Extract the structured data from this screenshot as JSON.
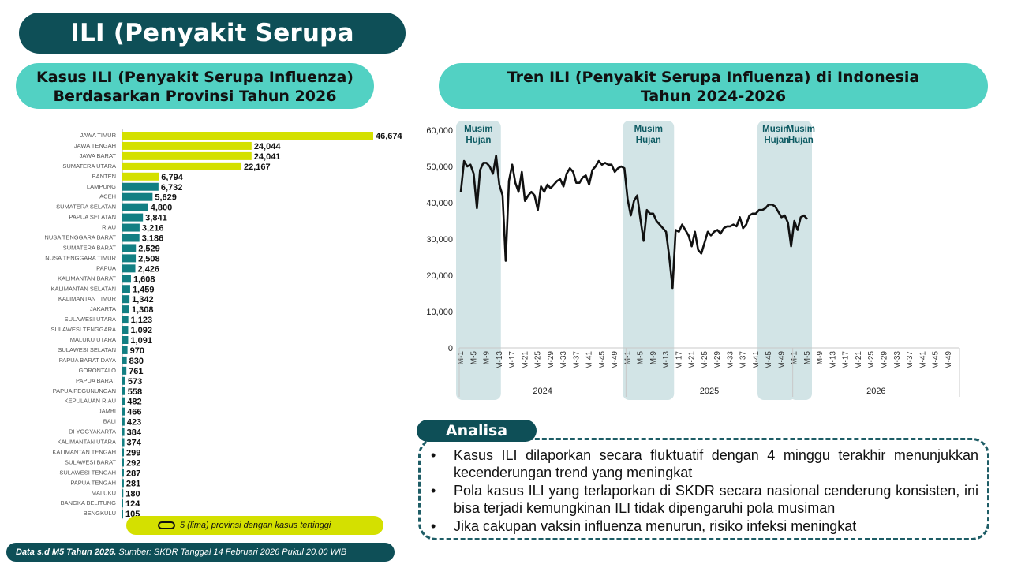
{
  "header": {
    "title": "ILI (Penyakit Serupa Influenza)"
  },
  "left_panel": {
    "title_line1": "Kasus ILI (Penyakit Serupa Influenza)",
    "title_line2": "Berdasarkan Provinsi Tahun 2026"
  },
  "right_panel": {
    "title_line1": "Tren ILI (Penyakit Serupa Influenza) di Indonesia",
    "title_line2": "Tahun 2024-2026"
  },
  "legend": {
    "text": "5 (lima) provinsi dengan kasus tertinggi"
  },
  "footer": {
    "bold": "Data s.d M5 Tahun 2026.",
    "rest": " Sumber: SKDR Tanggal 14 Februari 2026 Pukul 20.00 WIB"
  },
  "analysis": {
    "label": "Analisa",
    "bullet_symbol": "•",
    "bullets": [
      "Kasus ILI dilaporkan secara fluktuatif dengan 4 minggu terakhir menunjukkan kecenderungan trend yang meningkat",
      "Pola kasus ILI yang terlaporkan di SKDR secara nasional cenderung konsisten, ini bisa terjadi kemungkinan ILI tidak dipengaruhi pola musiman",
      "Jika cakupan vaksin influenza menurun, risiko infeksi meningkat"
    ]
  },
  "colors": {
    "top5": "#d4e000",
    "others": "#127f83",
    "dark": "#0e4f57",
    "accent": "#52d1c3",
    "season_band": "#d2e4e6",
    "line": "#111111"
  },
  "chart_data": [
    {
      "type": "bar",
      "orientation": "horizontal",
      "categories": [
        "JAWA TIMUR",
        "JAWA TENGAH",
        "JAWA BARAT",
        "SUMATERA UTARA",
        "BANTEN",
        "LAMPUNG",
        "ACEH",
        "SUMATERA SELATAN",
        "PAPUA SELATAN",
        "RIAU",
        "NUSA TENGGARA BARAT",
        "SUMATERA BARAT",
        "NUSA TENGGARA TIMUR",
        "PAPUA",
        "KALIMANTAN BARAT",
        "KALIMANTAN SELATAN",
        "KALIMANTAN TIMUR",
        "JAKARTA",
        "SULAWESI UTARA",
        "SULAWESI TENGGARA",
        "MALUKU UTARA",
        "SULAWESI SELATAN",
        "PAPUA BARAT DAYA",
        "GORONTALO",
        "PAPUA BARAT",
        "PAPUA PEGUNUNGAN",
        "KEPULAUAN RIAU",
        "JAMBI",
        "BALI",
        "DI YOGYAKARTA",
        "KALIMANTAN UTARA",
        "KALIMANTAN TENGAH",
        "SULAWESI BARAT",
        "SULAWESI TENGAH",
        "PAPUA TENGAH",
        "MALUKU",
        "BANGKA BELITUNG",
        "BENGKULU"
      ],
      "values": [
        46674,
        24044,
        24041,
        22167,
        6794,
        6732,
        5629,
        4800,
        3841,
        3216,
        3186,
        2529,
        2508,
        2426,
        1608,
        1459,
        1342,
        1308,
        1123,
        1092,
        1091,
        970,
        830,
        761,
        573,
        558,
        482,
        466,
        423,
        384,
        374,
        299,
        292,
        287,
        281,
        180,
        124,
        105
      ],
      "value_labels": [
        "46,674",
        "24,044",
        "24,041",
        "22,167",
        "6,794",
        "6,732",
        "5,629",
        "4,800",
        "3,841",
        "3,216",
        "3,186",
        "2,529",
        "2,508",
        "2,426",
        "1,608",
        "1,459",
        "1,342",
        "1,308",
        "1,123",
        "1,092",
        "1,091",
        "970",
        "830",
        "761",
        "573",
        "558",
        "482",
        "466",
        "423",
        "384",
        "374",
        "299",
        "292",
        "287",
        "281",
        "180",
        "124",
        "105"
      ],
      "highlight_top": 5
    },
    {
      "type": "line",
      "y_ticks": [
        0,
        10000,
        20000,
        30000,
        40000,
        50000,
        60000
      ],
      "y_tick_labels": [
        "0",
        "10,000",
        "20,000",
        "30,000",
        "40,000",
        "50,000",
        "60,000"
      ],
      "ylim": [
        0,
        60000
      ],
      "week_tick_labels": [
        "M-1",
        "M-5",
        "M-9",
        "M-13",
        "M-17",
        "M-21",
        "M-25",
        "M-29",
        "M-33",
        "M-37",
        "M-41",
        "M-45",
        "M-49"
      ],
      "years": [
        "2024",
        "2025",
        "2026"
      ],
      "season_label": "Musim Hujan",
      "season_bands": [
        {
          "year": "2024",
          "from_week": 1,
          "to_week": 12
        },
        {
          "year": "2025",
          "from_week": 1,
          "to_week": 14
        },
        {
          "year": "2025",
          "from_week": 43,
          "to_week": 52
        },
        {
          "year": "2026",
          "from_week": 1,
          "to_week": 5
        }
      ],
      "series": [
        {
          "values": [
            43000,
            51500,
            50000,
            50500,
            48000,
            38500,
            49000,
            51000,
            51000,
            50000,
            48000,
            53000,
            45000,
            42000,
            24000,
            46000,
            50500,
            45500,
            43000,
            48500,
            40500,
            42000,
            43000,
            42000,
            38000,
            44500,
            43000,
            45000,
            44000,
            45000,
            46000,
            46500,
            44500,
            48000,
            49500,
            48500,
            45500,
            45500,
            47000,
            47500,
            45000,
            49000,
            50000,
            51500,
            50500,
            51000,
            50500,
            50500,
            48500,
            49500,
            50000,
            49500,
            41000,
            36500,
            40500,
            42000,
            35500,
            29500,
            38000,
            37000,
            37000,
            35000,
            34000,
            33000,
            32000,
            25000,
            16500,
            32500,
            32000,
            34000,
            32500,
            31000,
            28000,
            32000,
            27000,
            26000,
            29000,
            32000,
            31000,
            32000,
            32500,
            31500,
            33000,
            33500,
            33500,
            34000,
            33500,
            36000,
            33000,
            34000,
            36500,
            37000,
            37000,
            38000,
            38000,
            38500,
            39500,
            39500,
            39000,
            37500,
            36000,
            36500,
            34500,
            28000,
            35000,
            32500,
            36000,
            36500,
            35500
          ]
        }
      ]
    }
  ]
}
